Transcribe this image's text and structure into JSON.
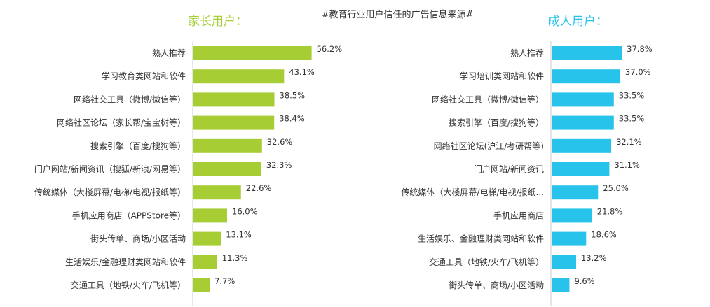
{
  "title": "#教育行业用户信任的广告信息来源#",
  "colors": {
    "parents": "#a6cd34",
    "adults": "#27c3ea",
    "axis": "#cccccc"
  },
  "chart_data": [
    {
      "type": "bar",
      "orientation": "horizontal",
      "title": "家长用户：",
      "color": "#a6cd34",
      "unit": "%",
      "categories": [
        "熟人推荐",
        "学习教育类网站和软件",
        "网络社交工具（微博/微信等）",
        "网络社区论坛（家长帮/宝宝树等）",
        "搜索引擎（百度/搜狗等）",
        "门户网站/新闻资讯（搜狐/新浪/网易等）",
        "传统媒体（大楼屏幕/电梯/电视/报纸等）",
        "手机应用商店（APPStore等）",
        "街头传单、商场/小区活动",
        "生活娱乐/金融理财类网站和软件",
        "交通工具（地铁/火车/飞机等）"
      ],
      "values": [
        56.2,
        43.1,
        38.5,
        38.4,
        32.6,
        32.3,
        22.6,
        16.0,
        13.1,
        11.3,
        7.7
      ],
      "value_labels": [
        "56.2%",
        "43.1%",
        "38.5%",
        "38.4%",
        "32.6%",
        "32.3%",
        "22.6%",
        "16.0%",
        "13.1%",
        "11.3%",
        "7.7%"
      ]
    },
    {
      "type": "bar",
      "orientation": "horizontal",
      "title": "成人用户：",
      "color": "#27c3ea",
      "unit": "%",
      "categories": [
        "熟人推荐",
        "学习培训类网站和软件",
        "网络社交工具（微博/微信等）",
        "搜索引擎（百度/搜狗等）",
        "网络社区论坛(沪江/考研帮等)",
        "门户网站/新闻资讯",
        "传统媒体（大楼屏幕/电梯/电视/报纸...",
        "手机应用商店",
        "生活娱乐、金融理财类网站和软件",
        "交通工具（地铁/火车/飞机等）",
        "街头传单、商场/小区活动"
      ],
      "values": [
        37.8,
        37.0,
        33.5,
        33.5,
        32.1,
        31.1,
        25.0,
        21.8,
        18.6,
        13.2,
        9.6
      ],
      "value_labels": [
        "37.8%",
        "37.0%",
        "33.5%",
        "33.5%",
        "32.1%",
        "31.1%",
        "25.0%",
        "21.8%",
        "18.6%",
        "13.2%",
        "9.6%"
      ]
    }
  ]
}
